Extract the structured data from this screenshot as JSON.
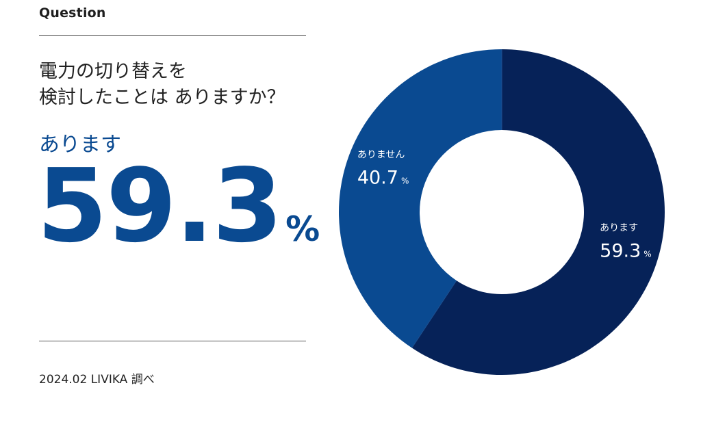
{
  "header": {
    "section_label": "Question"
  },
  "question": {
    "line1": "電力の切り替えを",
    "line2": "検討したことは ありますか？"
  },
  "highlight": {
    "label": "あります",
    "value": "59.3",
    "unit": "%"
  },
  "footer": {
    "source": "2024.02 LIVIKA 調べ"
  },
  "colors": {
    "accent": "#0a4a91",
    "slice_yes": "#062258",
    "slice_no": "#0a4a91",
    "text": "#222222"
  },
  "chart_data": {
    "type": "pie",
    "donut": true,
    "start": "12 o'clock, clockwise",
    "slices": [
      {
        "label": "あります",
        "value": 59.3,
        "display_value": "59.3",
        "unit": "%",
        "color": "#062258"
      },
      {
        "label": "ありません",
        "value": 40.7,
        "display_value": "40.7",
        "unit": "%",
        "color": "#0a4a91"
      }
    ]
  }
}
